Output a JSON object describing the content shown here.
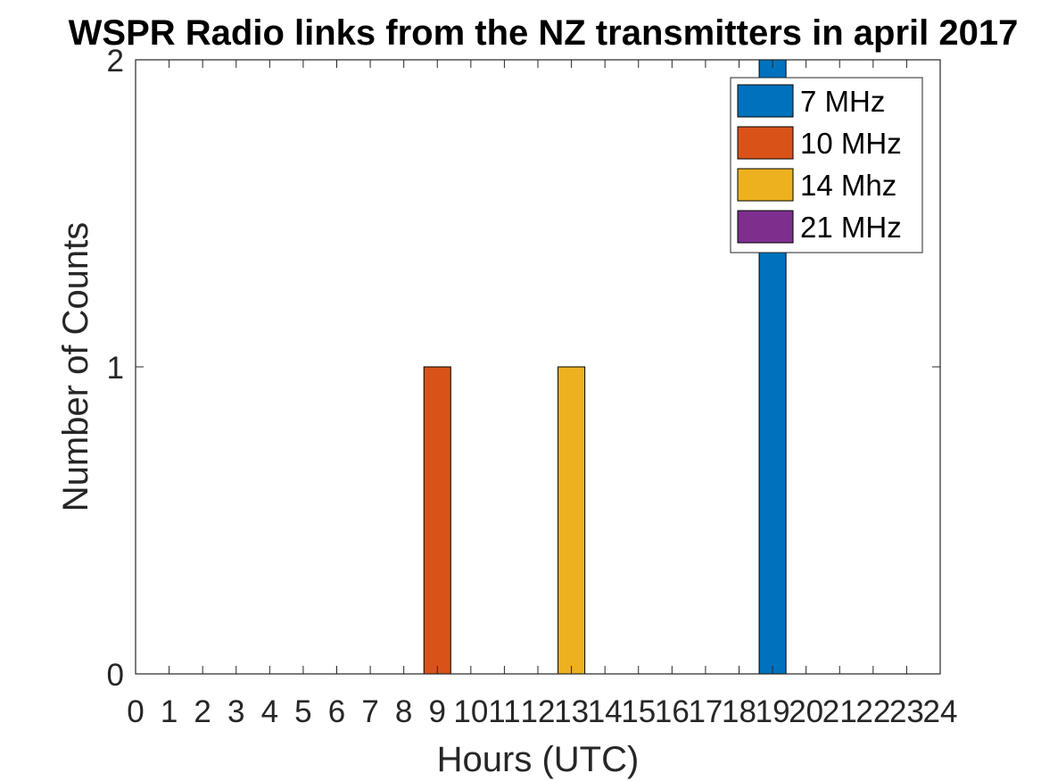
{
  "chart_data": {
    "type": "bar",
    "title": "WSPR Radio links from the NZ transmitters in april 2017",
    "xlabel": "Hours (UTC)",
    "ylabel": "Number of Counts",
    "xlim": [
      0,
      24
    ],
    "ylim": [
      0,
      2
    ],
    "x_ticks": [
      0,
      1,
      2,
      3,
      4,
      5,
      6,
      7,
      8,
      9,
      10,
      11,
      12,
      13,
      14,
      15,
      16,
      17,
      18,
      19,
      20,
      21,
      22,
      23,
      24
    ],
    "y_ticks": [
      0,
      1,
      2
    ],
    "grid": false,
    "legend_position": "top-right",
    "series": [
      {
        "name": "7 MHz",
        "color": "#0072BD",
        "points": [
          {
            "x": 19,
            "y": 2
          }
        ]
      },
      {
        "name": "10 MHz",
        "color": "#D95319",
        "points": [
          {
            "x": 9,
            "y": 1
          }
        ]
      },
      {
        "name": "14 Mhz",
        "color": "#EDB120",
        "points": [
          {
            "x": 13,
            "y": 1
          }
        ]
      },
      {
        "name": "21 MHz",
        "color": "#7E2F8E",
        "points": []
      }
    ]
  }
}
